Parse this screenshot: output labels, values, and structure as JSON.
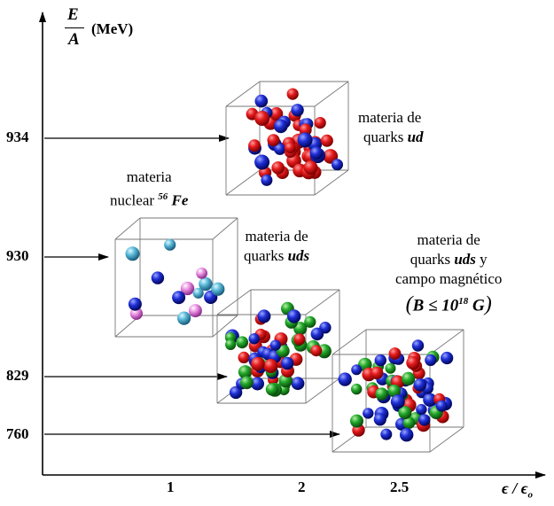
{
  "axes": {
    "y_label_num": "E",
    "y_label_den": "A",
    "y_unit": "(MeV)",
    "x_label": "ϵ / ϵ",
    "x_label_sub": "o",
    "y_ticks": [
      "934",
      "930",
      "829",
      "760"
    ],
    "x_ticks": [
      "1",
      "2",
      "2.5"
    ]
  },
  "boxes": {
    "ud": {
      "line1": "materia de",
      "line2_pre": "quarks ",
      "line2_em": "ud"
    },
    "fe": {
      "line1": "materia",
      "line2_pre": "nuclear ",
      "sup": "56",
      "line2_em": " Fe"
    },
    "uds": {
      "line1": "materia de",
      "line2_pre": "quarks ",
      "line2_em": "uds"
    },
    "mag": {
      "line1": "materia de",
      "line2_pre": "quarks ",
      "line2_em": "uds",
      "line2_post": " y",
      "line3": "campo magnético",
      "cond_pre": "B ≤ 10",
      "cond_sup": "18",
      "cond_post": " G"
    }
  },
  "colors": {
    "red": "#e41a1c",
    "blue": "#1f2fd6",
    "green": "#22a82a",
    "pink": "#e88de0",
    "cyan": "#58b8d8"
  }
}
